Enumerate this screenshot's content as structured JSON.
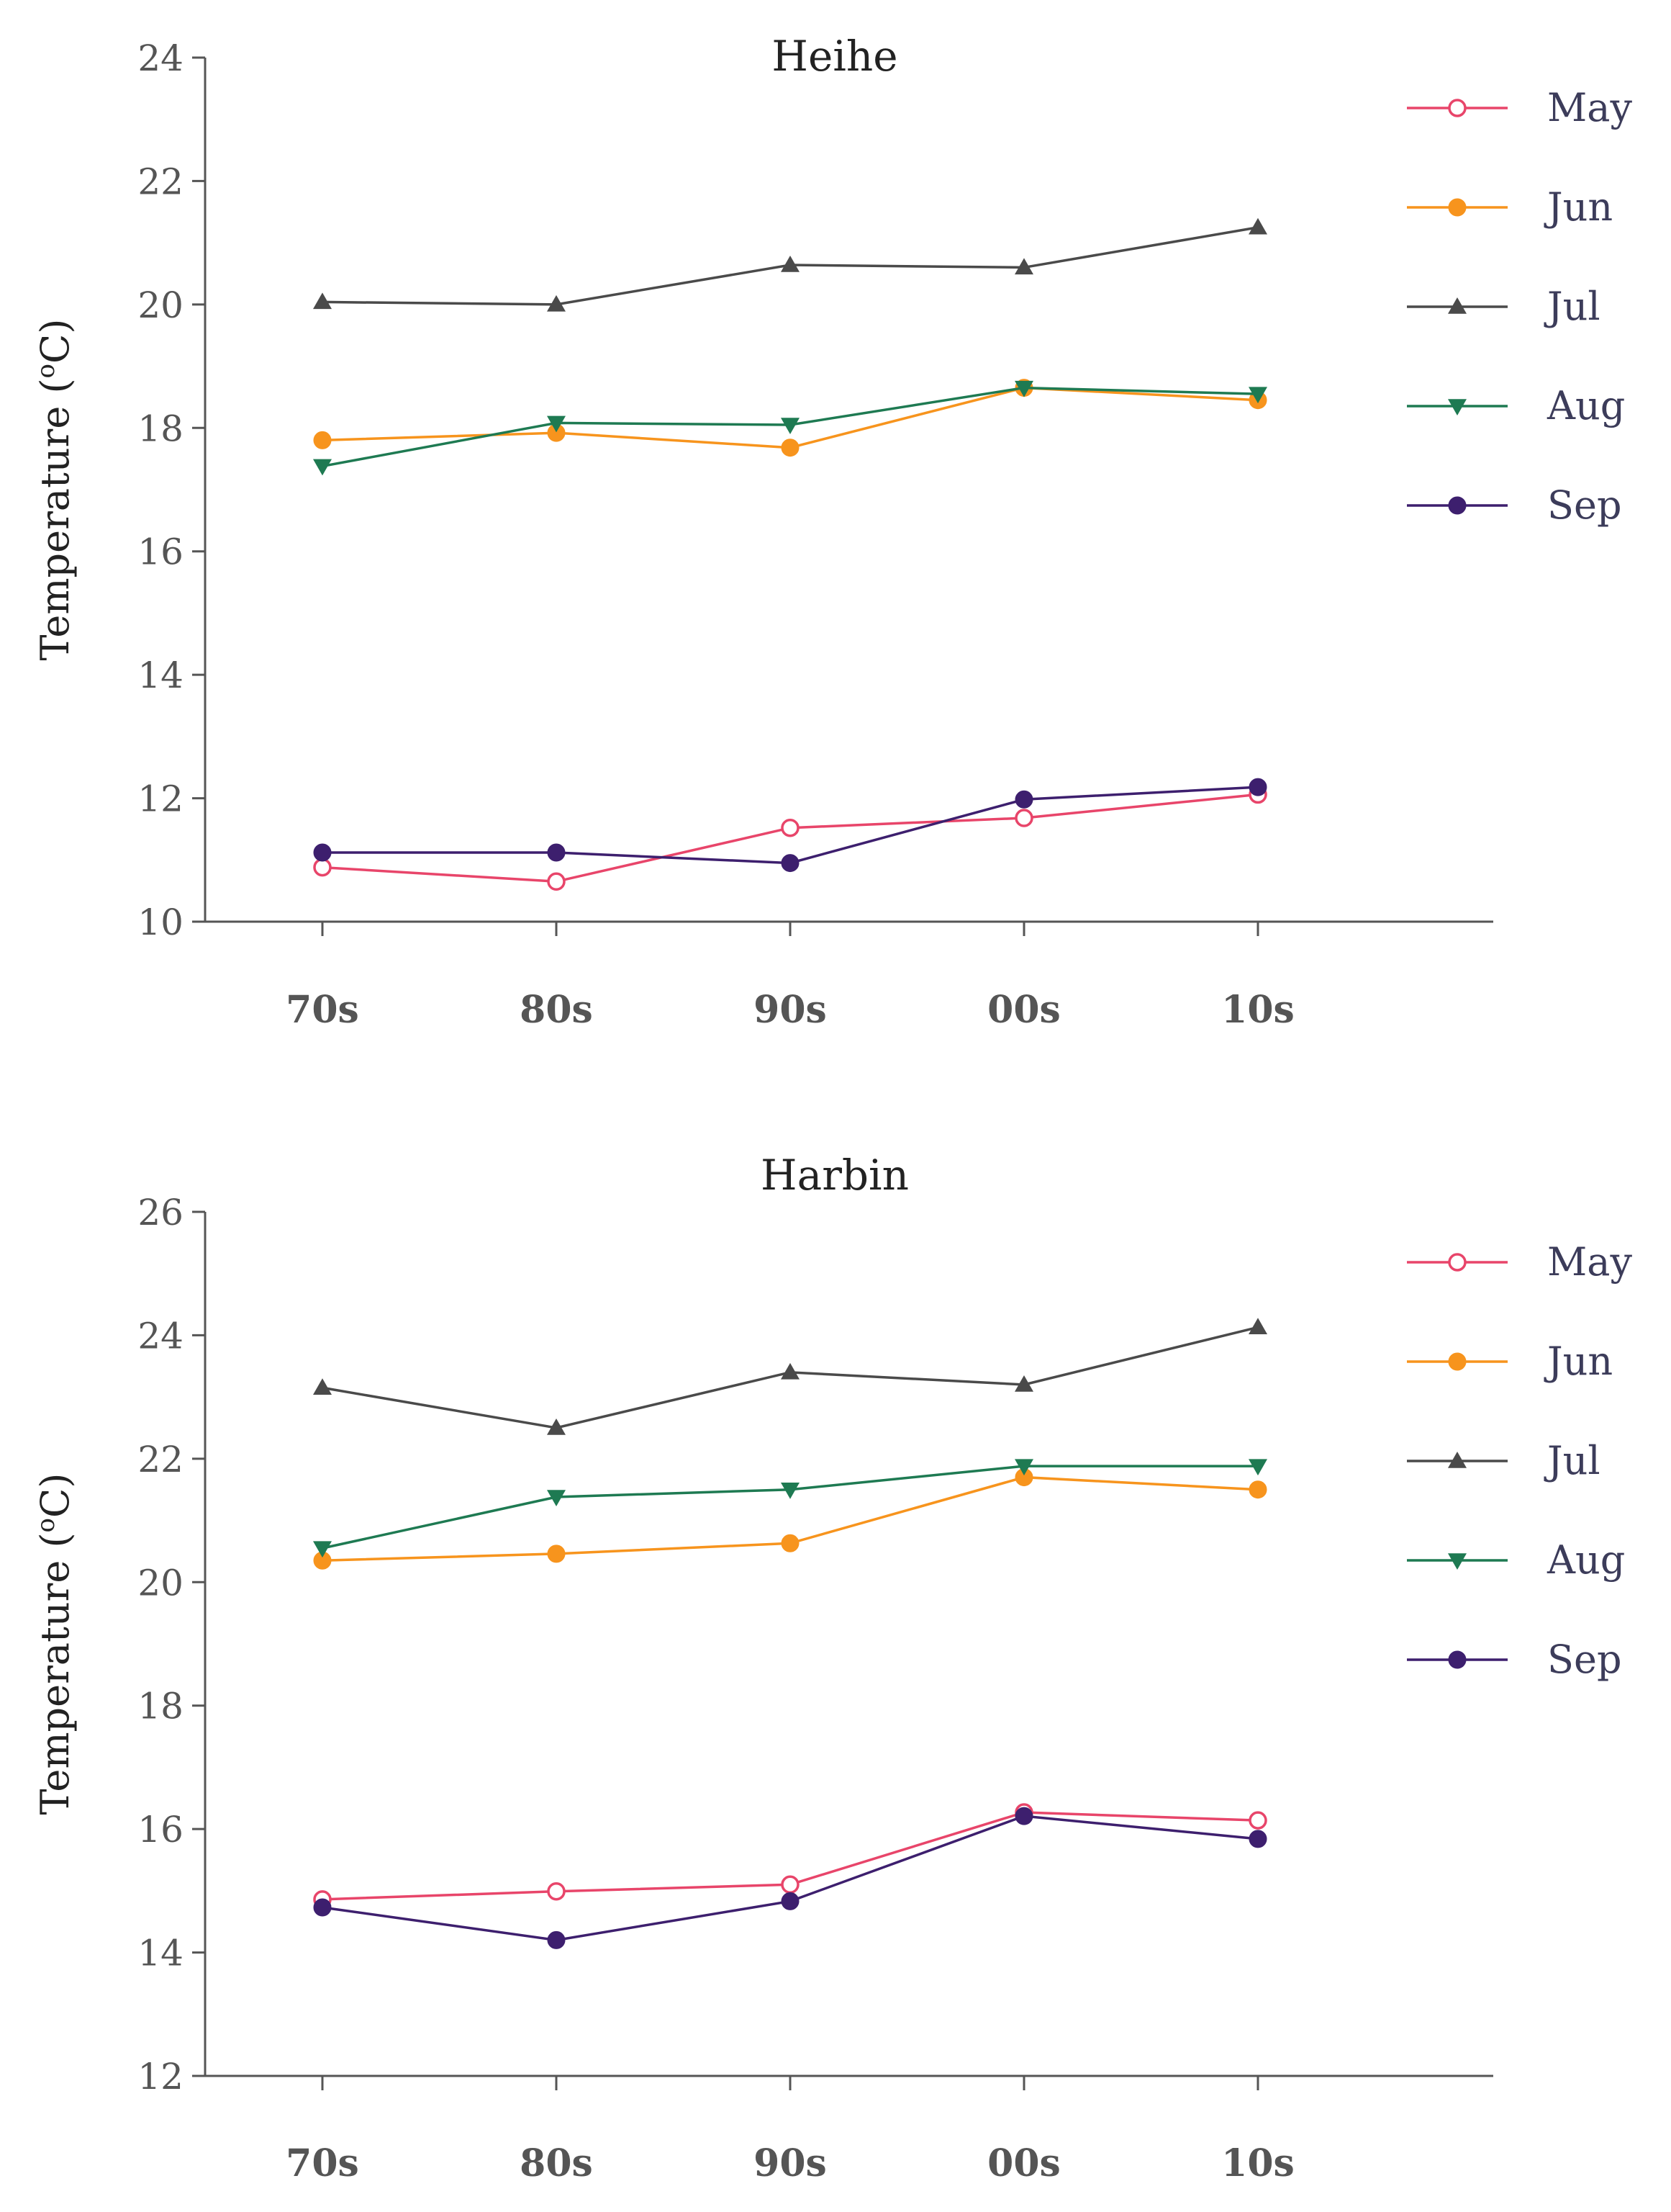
{
  "chart_data": [
    {
      "type": "line",
      "title": "Heihe",
      "ylabel": "Temperature (",
      "ylabel_sup": "o",
      "ylabel_unit": "C)",
      "categories": [
        "70s",
        "80s",
        "90s",
        "00s",
        "10s"
      ],
      "ylim": [
        10,
        24
      ],
      "yticks": [
        10,
        12,
        14,
        16,
        18,
        20,
        22,
        24
      ],
      "ytick_labels": [
        "10",
        "12",
        "14",
        "16",
        "18",
        "20",
        "22",
        "24"
      ],
      "grid": false,
      "legend_position": "right",
      "series": [
        {
          "name": "May",
          "color": "#e8456a",
          "marker": "open-circle",
          "values": [
            10.88,
            10.65,
            11.52,
            11.68,
            12.06
          ]
        },
        {
          "name": "Jun",
          "color": "#f7941d",
          "marker": "filled-circle",
          "values": [
            17.8,
            17.92,
            17.68,
            18.65,
            18.45
          ]
        },
        {
          "name": "Jul",
          "color": "#4a4a4a",
          "marker": "triangle-up",
          "values": [
            20.04,
            20.0,
            20.64,
            20.6,
            21.25
          ]
        },
        {
          "name": "Aug",
          "color": "#1e7a52",
          "marker": "triangle-down",
          "values": [
            17.38,
            18.08,
            18.05,
            18.65,
            18.55
          ]
        },
        {
          "name": "Sep",
          "color": "#3d1f6e",
          "marker": "filled-circle",
          "values": [
            11.12,
            11.12,
            10.95,
            11.98,
            12.18
          ]
        }
      ]
    },
    {
      "type": "line",
      "title": "Harbin",
      "ylabel": "Temperature (",
      "ylabel_sup": "o",
      "ylabel_unit": "C)",
      "categories": [
        "70s",
        "80s",
        "90s",
        "00s",
        "10s"
      ],
      "ylim": [
        12,
        26
      ],
      "yticks": [
        12,
        14,
        16,
        18,
        20,
        22,
        24,
        26
      ],
      "ytick_labels": [
        "12",
        "14",
        "16",
        "18",
        "20",
        "22",
        "24",
        "26"
      ],
      "grid": false,
      "legend_position": "right",
      "series": [
        {
          "name": "May",
          "color": "#e8456a",
          "marker": "open-circle",
          "values": [
            14.86,
            14.99,
            15.1,
            16.27,
            16.14
          ]
        },
        {
          "name": "Jun",
          "color": "#f7941d",
          "marker": "filled-circle",
          "values": [
            20.35,
            20.46,
            20.63,
            21.7,
            21.5
          ]
        },
        {
          "name": "Jul",
          "color": "#4a4a4a",
          "marker": "triangle-up",
          "values": [
            23.15,
            22.5,
            23.4,
            23.2,
            24.13
          ]
        },
        {
          "name": "Aug",
          "color": "#1e7a52",
          "marker": "triangle-down",
          "values": [
            20.55,
            21.38,
            21.5,
            21.88,
            21.88
          ]
        },
        {
          "name": "Sep",
          "color": "#3d1f6e",
          "marker": "filled-circle",
          "values": [
            14.73,
            14.2,
            14.83,
            16.21,
            15.84
          ]
        }
      ]
    }
  ]
}
